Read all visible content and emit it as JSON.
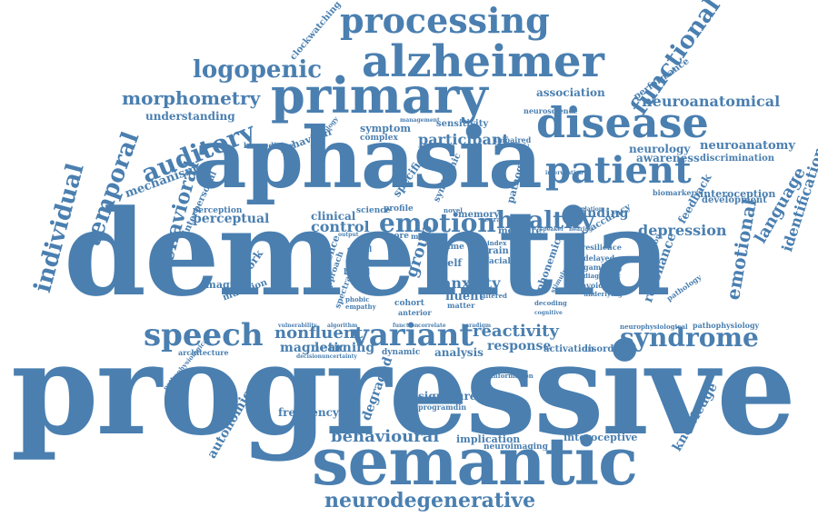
{
  "words": {
    "progressive": "progressive",
    "dementia": "dementia",
    "aphasia": "aphasia",
    "semantic": "semantic",
    "primary": "primary",
    "alzheimer": "alzheimer",
    "processing": "processing",
    "disease": "disease",
    "patient": "patient",
    "logopenic": "logopenic",
    "morphometry": "morphometry",
    "auditory": "auditory",
    "speech": "speech",
    "variant": "variant",
    "syndrome": "syndrome",
    "emotion": "emotion",
    "healthy": "healthy",
    "neurodegenerative": "neurodegenerative",
    "behavioural": "behavioural",
    "nonfluent": "nonfluent",
    "reactivity": "reactivity",
    "functional": "functional",
    "temporal": "temporal",
    "individual": "individual",
    "behavioral": "behavioral",
    "neuroanatomical": "neuroanatomical",
    "emotional": "emotional",
    "language": "language",
    "knowledge": "knowledge",
    "autonomic": "autonomic",
    "depression": "depression",
    "anxiety": "anxiety",
    "control": "control",
    "perceptual": "perceptual",
    "participant": "participant",
    "neuroanatomy": "neuroanatomy",
    "identification": "identification",
    "resonance": "resonance",
    "magnetic": "magnetic",
    "learning": "learning",
    "response": "response",
    "analysis": "analysis",
    "frequency": "frequency",
    "degraded": "degraded",
    "signature": "signature",
    "programdin": "programdin",
    "implication": "implication",
    "neuroimaging": "neuroimaging",
    "interoceptive": "interoceptive",
    "mechanism": "mechanism",
    "understanding": "understanding",
    "association": "association",
    "performance": "performance",
    "clockwatching": "clockwatching",
    "neurology": "neurology",
    "awareness": "awareness",
    "interoception": "interoception",
    "development": "development",
    "discrimination": "discrimination",
    "biomarkers": "biomarkers",
    "feedback": "feedback",
    "accuracy": "accuracy",
    "finding": "finding",
    "measure": "measure",
    "memory": "memory",
    "group": "group",
    "clinical": "clinical",
    "science": "science",
    "profile": "profile",
    "perception": "perception",
    "interpersonal": "interpersonal",
    "network": "network",
    "imaging": "imaging",
    "mutation": "mutation",
    "fluent": "fluent",
    "self": "self",
    "brain": "brain",
    "facial": "facial",
    "cohort": "cohort",
    "anterior": "anterior",
    "symptom": "symptom",
    "sensitivity": "sensitivity",
    "complex": "complex",
    "impaired": "impaired",
    "biomedicine": "biomedicine",
    "behaviour": "behaviour",
    "technology": "technology",
    "neuroscience": "neuroscience",
    "architecture": "architecture",
    "pathophysiological": "pathophysiological",
    "dynamic": "dynamic",
    "activation": "activation",
    "disorder": "disorder",
    "pathophysiology": "pathophysiology",
    "neurophysiological": "neurophysiological",
    "delayed": "delayed",
    "gambling": "gambling",
    "avoidance": "avoidance",
    "resilience": "resilience",
    "phonemic": "phonemic",
    "degeneration": "degeneration",
    "pathology": "pathology",
    "difference": "difference",
    "approach": "approach",
    "older": "older",
    "based": "based",
    "signal": "signal",
    "time": "time",
    "index": "index",
    "major": "major",
    "more": "more",
    "novel": "novel",
    "neural": "neural",
    "paradigm": "paradigm",
    "algorithm": "algorithm",
    "vulnerability": "vulnerability",
    "correlate": "correlate",
    "information": "information",
    "decoding": "decoding",
    "matter": "matter",
    "altered": "altered",
    "spectral": "spectral",
    "phobic": "phobic",
    "empathy": "empathy",
    "specific": "specific",
    "pathogenic": "pathogenic",
    "syndromic": "syndromic",
    "regulation": "regulation",
    "diagnostic": "diagnostic",
    "intervention": "intervention",
    "underlying": "underlying",
    "cognitive": "cognitive",
    "stimulus": "stimulus",
    "uncertainty": "uncertainty",
    "decision": "decision",
    "speaker": "speaker",
    "hearing": "hearing",
    "function": "function",
    "management": "management",
    "output": "output"
  }
}
